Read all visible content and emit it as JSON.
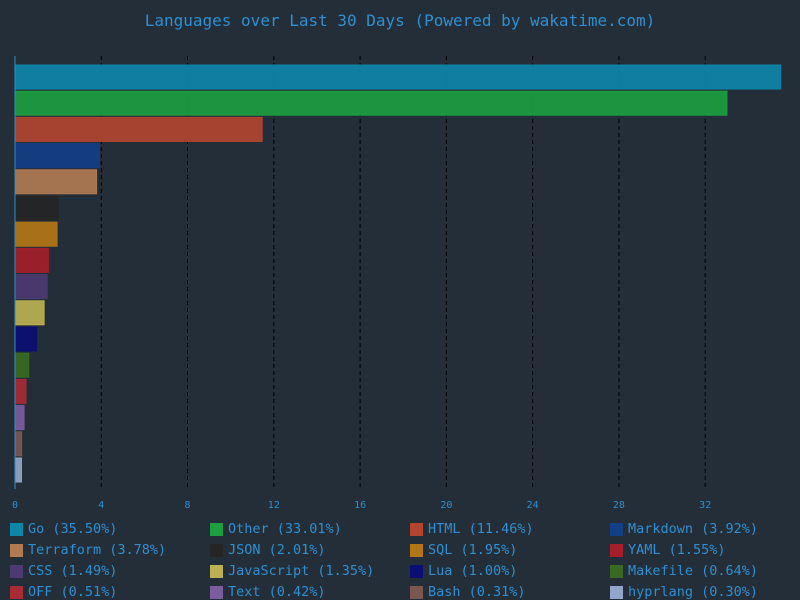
{
  "chart_data": {
    "type": "bar",
    "orientation": "horizontal",
    "title": "Languages over Last 30 Days (Powered by wakatime.com)",
    "xlabel": "",
    "ylabel": "",
    "xlim": [
      0,
      35.7
    ],
    "xticks": [
      0,
      4,
      8,
      12,
      16,
      20,
      24,
      28,
      32
    ],
    "grid": "vertical dashed",
    "legend_placement": "bottom",
    "categories": [
      "Go",
      "Other",
      "HTML",
      "Markdown",
      "Terraform",
      "JSON",
      "SQL",
      "YAML",
      "CSS",
      "JavaScript",
      "Lua",
      "Makefile",
      "OFF",
      "Text",
      "Bash",
      "hyprlang"
    ],
    "values": [
      35.5,
      33.01,
      11.46,
      3.92,
      3.78,
      2.01,
      1.95,
      1.55,
      1.49,
      1.35,
      1.0,
      0.64,
      0.51,
      0.42,
      0.31,
      0.3
    ],
    "legend_labels": [
      "Go (35.50%)",
      "Other (33.01%)",
      "HTML (11.46%)",
      "Markdown (3.92%)",
      "Terraform (3.78%)",
      "JSON (2.01%)",
      "SQL (1.95%)",
      "YAML (1.55%)",
      "CSS (1.49%)",
      "JavaScript (1.35%)",
      "Lua (1.00%)",
      "Makefile (0.64%)",
      "OFF (0.51%)",
      "Text (0.42%)",
      "Bash (0.31%)",
      "hyprlang (0.30%)"
    ],
    "colors": [
      "#0e86aa",
      "#1d9e3f",
      "#b24530",
      "#123f85",
      "#b07a52",
      "#252525",
      "#b37617",
      "#a41f29",
      "#4c3a70",
      "#bcb152",
      "#0c0e73",
      "#396a23",
      "#a82a35",
      "#7b5c9d",
      "#7c5750",
      "#91a6c8"
    ]
  }
}
